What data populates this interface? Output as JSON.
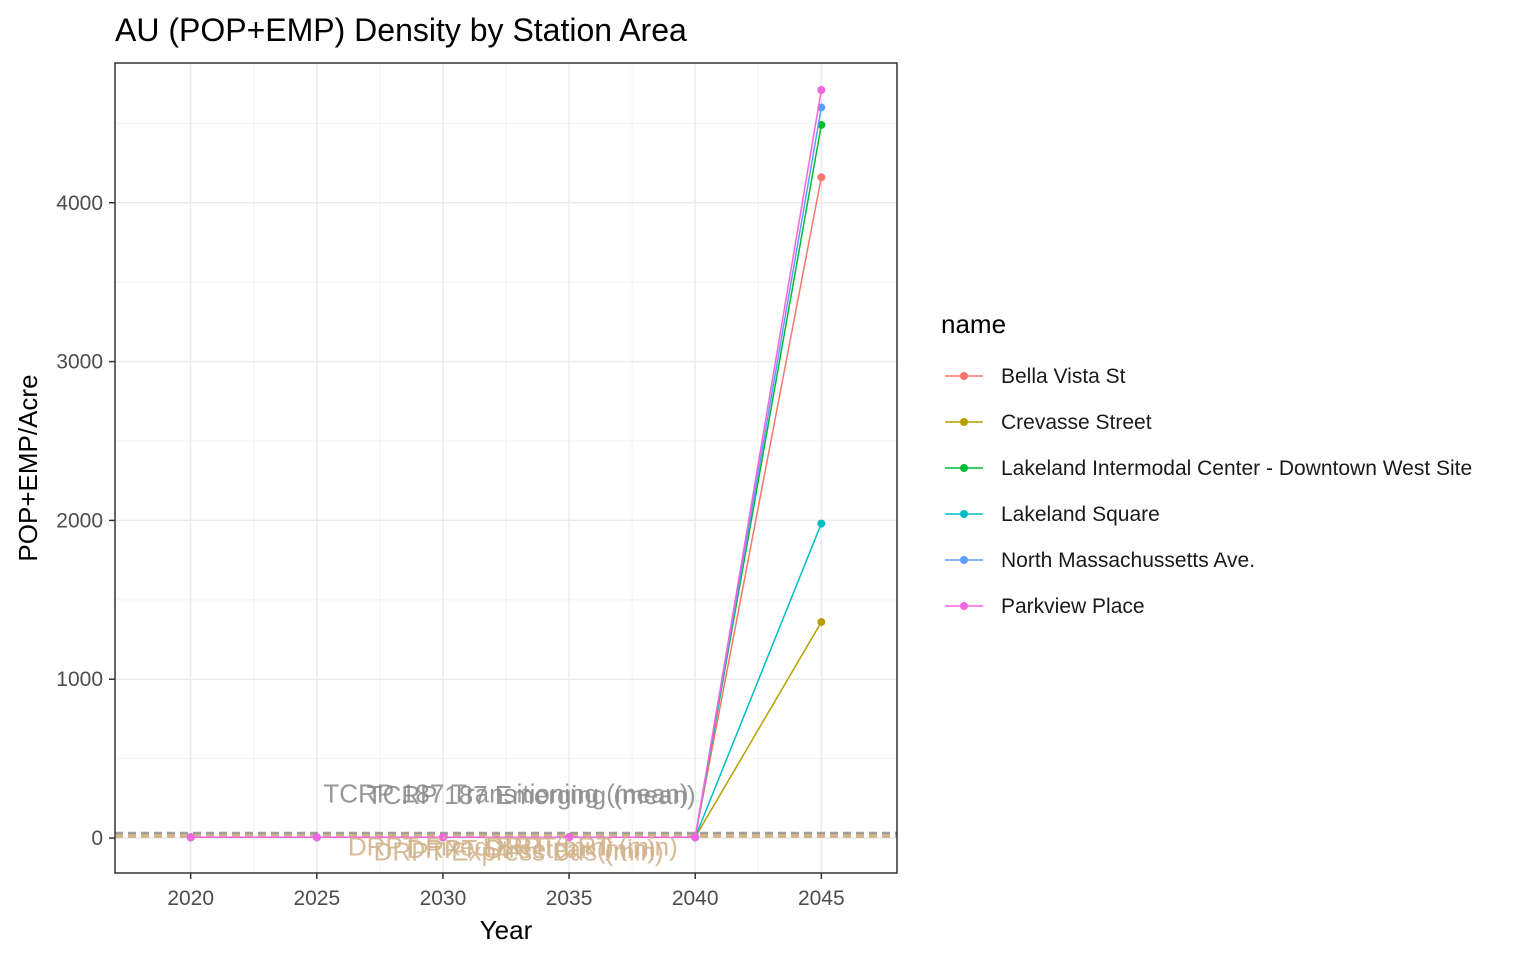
{
  "chart_data": {
    "type": "line",
    "title": "AU (POP+EMP) Density by Station Area",
    "xlabel": "Year",
    "ylabel": "POP+EMP/Acre",
    "xlim": [
      2017,
      2048
    ],
    "ylim": [
      -220,
      4880
    ],
    "x_ticks": [
      2020,
      2025,
      2030,
      2035,
      2040,
      2045
    ],
    "y_ticks": [
      0,
      1000,
      2000,
      3000,
      4000
    ],
    "grid": true,
    "legend": {
      "title": "name",
      "position": "right"
    },
    "x": [
      2020,
      2025,
      2030,
      2035,
      2040,
      2045
    ],
    "series": [
      {
        "name": "Bella Vista St",
        "color": "#F8766D",
        "values": [
          5,
          5,
          5,
          5,
          5,
          4160
        ]
      },
      {
        "name": "Crevasse Street",
        "color": "#B79F00",
        "values": [
          5,
          5,
          5,
          5,
          5,
          1360
        ]
      },
      {
        "name": "Lakeland Intermodal Center - Downtown West Site",
        "color": "#00BA38",
        "values": [
          5,
          5,
          5,
          5,
          5,
          4490
        ]
      },
      {
        "name": "Lakeland Square",
        "color": "#00BFC4",
        "values": [
          5,
          5,
          5,
          5,
          5,
          1980
        ]
      },
      {
        "name": "North Massachussetts Ave.",
        "color": "#619CFF",
        "values": [
          5,
          5,
          5,
          5,
          5,
          4600
        ]
      },
      {
        "name": "Parkview Place",
        "color": "#F564E3",
        "values": [
          5,
          5,
          5,
          5,
          5,
          4710
        ]
      }
    ],
    "reference_lines": [
      {
        "label": "TCRP 187 Transitioning (mean)",
        "value": 30,
        "color": "#8c8c8c",
        "label_x": 2032.5,
        "label_y": 225
      },
      {
        "label": "TCRP 187 Emerging (mean)",
        "value": 22,
        "color": "#8c8c8c",
        "label_x": 2033.5,
        "label_y": 215
      },
      {
        "label": "DRPT Fixed BRT (min)",
        "value": 14,
        "color": "#d2b48c",
        "label_x": 2031.5,
        "label_y": -110
      },
      {
        "label": "DRPT Express Bus (min)",
        "value": 10,
        "color": "#d2b48c",
        "label_x": 2033.0,
        "label_y": -140
      },
      {
        "label": "DRPT LRT (min)",
        "value": 18,
        "color": "#d2b48c",
        "label_x": 2035.5,
        "label_y": -110
      },
      {
        "label": "DRPT Streetcar (min)",
        "value": 12,
        "color": "#d2b48c",
        "label_x": 2033.5,
        "label_y": -125
      }
    ]
  }
}
